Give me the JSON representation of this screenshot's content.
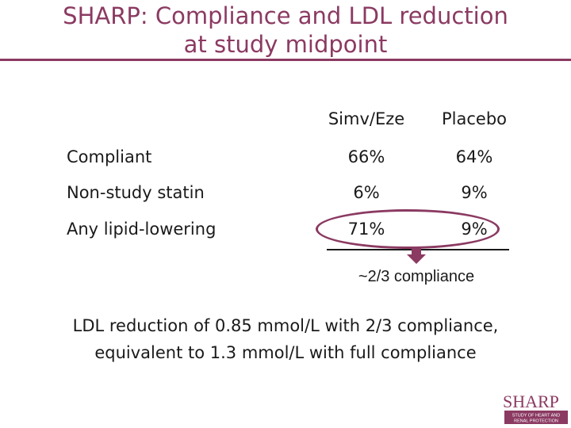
{
  "title": {
    "line1": "SHARP: Compliance and LDL reduction",
    "line2": "at study midpoint"
  },
  "table": {
    "headers": [
      "Simv/Eze",
      "Placebo"
    ],
    "rows": [
      {
        "label": "Compliant",
        "simv_eze": "66%",
        "placebo": "64%"
      },
      {
        "label": "Non-study statin",
        "simv_eze": "6%",
        "placebo": "9%"
      },
      {
        "label": "Any lipid-lowering",
        "simv_eze": "71%",
        "placebo": "9%"
      }
    ]
  },
  "compliance_note": "~2/3 compliance",
  "conclusion": {
    "line1": "LDL reduction of 0.85 mmol/L with 2/3 compliance,",
    "line2": "equivalent to 1.3 mmol/L with full compliance"
  },
  "logo": {
    "name": "SHARP",
    "tagline_line1": "STUDY OF HEART AND",
    "tagline_line2": "RENAL PROTECTION"
  },
  "colors": {
    "accent": "#8b3a62",
    "text": "#1a1a1a"
  }
}
